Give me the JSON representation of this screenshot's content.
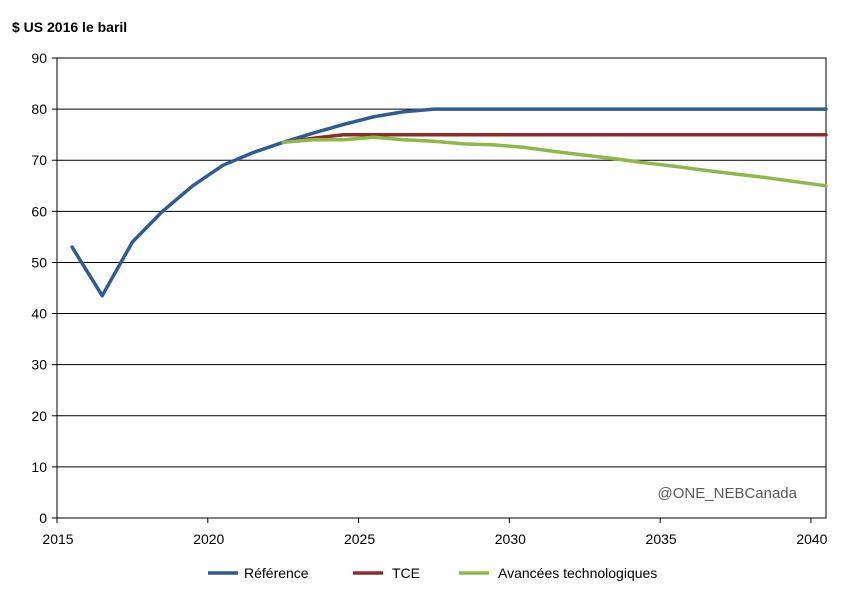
{
  "chart_data": {
    "type": "line",
    "title": "",
    "ylabel": "$ US 2016 le baril",
    "xlabel": "",
    "xlim": [
      2015,
      2040
    ],
    "ylim": [
      0,
      90
    ],
    "yticks": [
      0,
      10,
      20,
      30,
      40,
      50,
      60,
      70,
      80,
      90
    ],
    "xticks": [
      2015,
      2020,
      2025,
      2030,
      2035,
      2040
    ],
    "grid": "horizontal",
    "legend_position": "bottom",
    "annotation": "@ONE_NEBCanada",
    "x": [
      2015.5,
      2016.5,
      2017.5,
      2018.5,
      2019.5,
      2020.5,
      2021.5,
      2022.5,
      2023.5,
      2024.5,
      2025.5,
      2026.5,
      2027.5,
      2028.5,
      2029.5,
      2030.5,
      2031.5,
      2032.5,
      2033.5,
      2034.5,
      2035.5,
      2036.5,
      2037.5,
      2038.5,
      2039.5,
      2040.5
    ],
    "series": [
      {
        "name": "Référence",
        "color": "#2e5b94",
        "values": [
          53,
          43.5,
          54,
          60,
          65,
          69,
          71.5,
          73.5,
          75.3,
          77,
          78.5,
          79.5,
          80,
          80,
          80,
          80,
          80,
          80,
          80,
          80,
          80,
          80,
          80,
          80,
          80,
          80
        ]
      },
      {
        "name": "TCE",
        "color": "#8b2e2a",
        "values": [
          null,
          null,
          null,
          null,
          null,
          null,
          null,
          73.5,
          74.3,
          75,
          75,
          75,
          75,
          75,
          75,
          75,
          75,
          75,
          75,
          75,
          75,
          75,
          75,
          75,
          75,
          75
        ]
      },
      {
        "name": "Avancées technologiques",
        "color": "#8db84a",
        "values": [
          null,
          null,
          null,
          null,
          null,
          null,
          null,
          73.5,
          74,
          74,
          74.5,
          74,
          73.7,
          73.2,
          73,
          72.5,
          71.7,
          71,
          70.3,
          69.5,
          68.8,
          68,
          67.3,
          66.6,
          65.8,
          65
        ]
      }
    ]
  }
}
